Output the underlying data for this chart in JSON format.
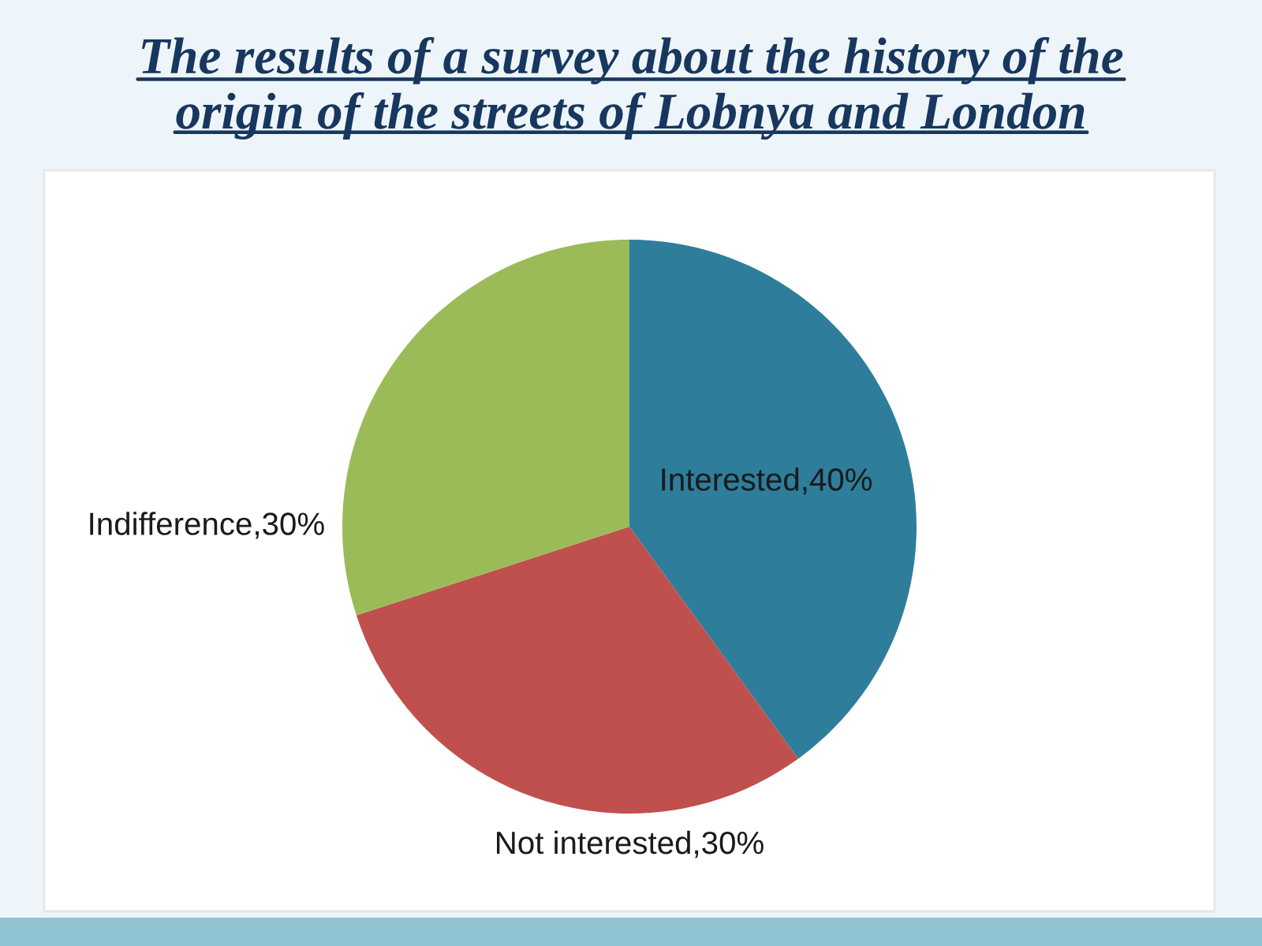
{
  "chart_data": {
    "type": "pie",
    "title": "The results of a survey about the history of the origin of the streets of Lobnya and London",
    "categories": [
      "Interested",
      "Not interested",
      "Indifference"
    ],
    "values": [
      40,
      30,
      30
    ],
    "colors": [
      "#2e7d9b",
      "#c0504d",
      "#9bbb59"
    ],
    "value_labels": [
      "40%",
      "30%",
      "30%"
    ]
  }
}
